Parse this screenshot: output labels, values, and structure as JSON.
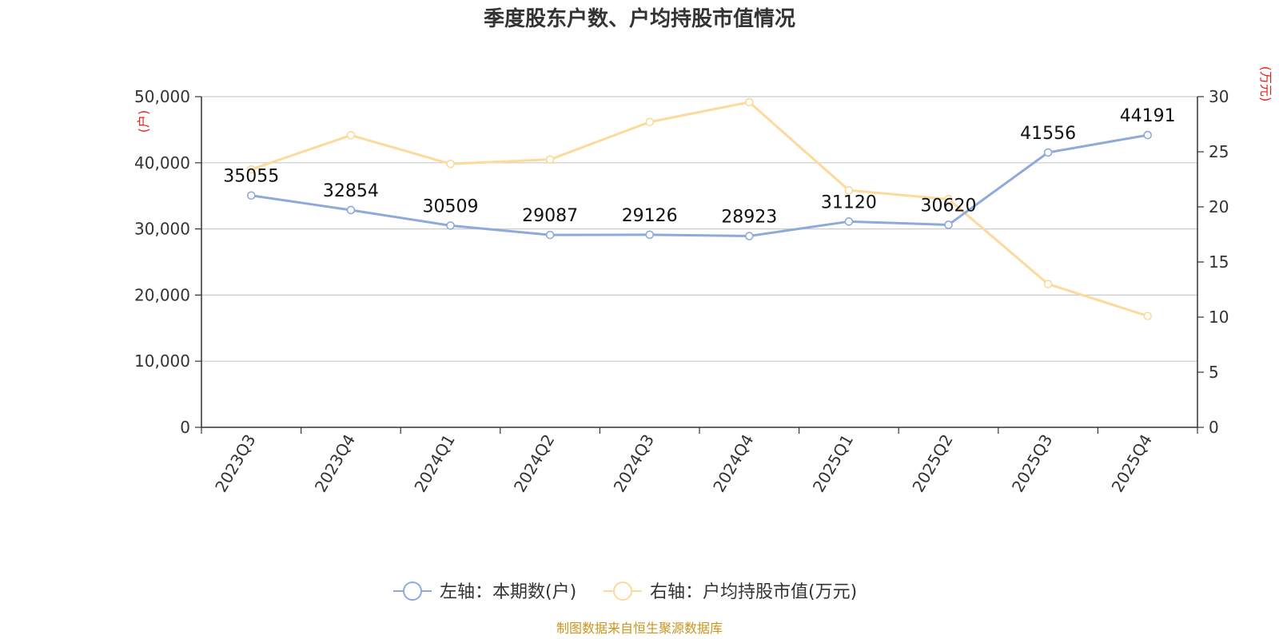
{
  "title": "季度股东户数、户均持股市值情况",
  "source": "制图数据来自恒生聚源数据库",
  "colors": {
    "left_series": "#8eaadb",
    "right_series": "#fdd99b",
    "unit": "#e6211c",
    "source": "#c8961e"
  },
  "chart_data": {
    "type": "line",
    "title": "季度股东户数、户均持股市值情况",
    "categories": [
      "2023Q3",
      "2023Q4",
      "2024Q1",
      "2024Q2",
      "2024Q3",
      "2024Q4",
      "2025Q1",
      "2025Q2",
      "2025Q3",
      "2025Q4"
    ],
    "left_axis": {
      "unit": "(户)",
      "min": 0,
      "max": 50000,
      "ticks": [
        "0",
        "10,000",
        "20,000",
        "30,000",
        "40,000",
        "50,000"
      ]
    },
    "right_axis": {
      "unit": "(万元)",
      "min": 0,
      "max": 30,
      "ticks": [
        "0",
        "5",
        "10",
        "15",
        "20",
        "25",
        "30"
      ]
    },
    "series": [
      {
        "name": "左轴：本期数(户)",
        "axis": "left",
        "values": [
          35055,
          32854,
          30509,
          29087,
          29126,
          28923,
          31120,
          30620,
          41556,
          44191
        ],
        "labels": [
          "35055",
          "32854",
          "30509",
          "29087",
          "29126",
          "28923",
          "31120",
          "30620",
          "41556",
          "44191"
        ]
      },
      {
        "name": "右轴：户均持股市值(万元)",
        "axis": "right",
        "values": [
          23.4,
          26.5,
          23.9,
          24.3,
          27.7,
          29.5,
          21.5,
          20.7,
          13.0,
          10.1
        ]
      }
    ],
    "grid": true,
    "legend_position": "bottom"
  }
}
